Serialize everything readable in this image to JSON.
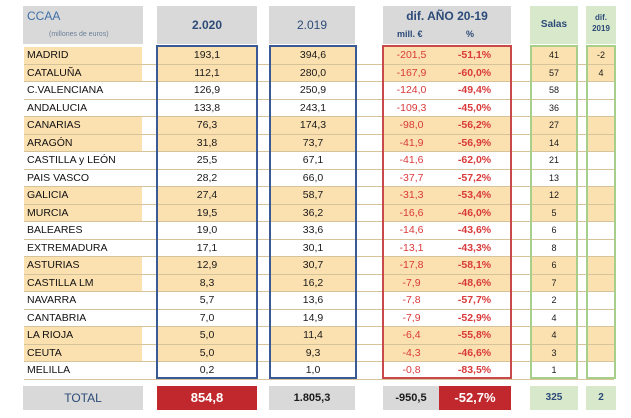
{
  "header": {
    "ccaa": "CCAA",
    "ccaa_sub": "(millones de euros)",
    "year_2020": "2.020",
    "year_2019": "2.019",
    "diff_title": "dif. AÑO 20-19",
    "diff_mill": "mill. €",
    "diff_pct": "%",
    "salas": "Salas",
    "salas_diff_top": "dif.",
    "salas_diff_bottom": "2019"
  },
  "rows": [
    {
      "name": "MADRID",
      "v2020": "193,1",
      "v2019": "394,6",
      "dm": "-201,5",
      "dp": "-51,1%",
      "salas": "41",
      "sdiff": "-2",
      "hl": true
    },
    {
      "name": "CATALUÑA",
      "v2020": "112,1",
      "v2019": "280,0",
      "dm": "-167,9",
      "dp": "-60,0%",
      "salas": "57",
      "sdiff": "4",
      "hl": true
    },
    {
      "name": "C.VALENCIANA",
      "v2020": "126,9",
      "v2019": "250,9",
      "dm": "-124,0",
      "dp": "-49,4%",
      "salas": "58",
      "sdiff": "",
      "hl": false
    },
    {
      "name": "ANDALUCIA",
      "v2020": "133,8",
      "v2019": "243,1",
      "dm": "-109,3",
      "dp": "-45,0%",
      "salas": "36",
      "sdiff": "",
      "hl": false
    },
    {
      "name": "CANARIAS",
      "v2020": "76,3",
      "v2019": "174,3",
      "dm": "-98,0",
      "dp": "-56,2%",
      "salas": "27",
      "sdiff": "",
      "hl": true
    },
    {
      "name": "ARAGÓN",
      "v2020": "31,8",
      "v2019": "73,7",
      "dm": "-41,9",
      "dp": "-56,9%",
      "salas": "14",
      "sdiff": "",
      "hl": true
    },
    {
      "name": "CASTILLA y LEÓN",
      "v2020": "25,5",
      "v2019": "67,1",
      "dm": "-41,6",
      "dp": "-62,0%",
      "salas": "21",
      "sdiff": "",
      "hl": false
    },
    {
      "name": "PAIS VASCO",
      "v2020": "28,2",
      "v2019": "66,0",
      "dm": "-37,7",
      "dp": "-57,2%",
      "salas": "13",
      "sdiff": "",
      "hl": false
    },
    {
      "name": "GALICIA",
      "v2020": "27,4",
      "v2019": "58,7",
      "dm": "-31,3",
      "dp": "-53,4%",
      "salas": "12",
      "sdiff": "",
      "hl": true
    },
    {
      "name": "MURCIA",
      "v2020": "19,5",
      "v2019": "36,2",
      "dm": "-16,6",
      "dp": "-46,0%",
      "salas": "5",
      "sdiff": "",
      "hl": true
    },
    {
      "name": "BALEARES",
      "v2020": "19,0",
      "v2019": "33,6",
      "dm": "-14,6",
      "dp": "-43,6%",
      "salas": "6",
      "sdiff": "",
      "hl": false
    },
    {
      "name": "EXTREMADURA",
      "v2020": "17,1",
      "v2019": "30,1",
      "dm": "-13,1",
      "dp": "-43,3%",
      "salas": "8",
      "sdiff": "",
      "hl": false
    },
    {
      "name": "ASTURIAS",
      "v2020": "12,9",
      "v2019": "30,7",
      "dm": "-17,8",
      "dp": "-58,1%",
      "salas": "6",
      "sdiff": "",
      "hl": true
    },
    {
      "name": "CASTILLA LM",
      "v2020": "8,3",
      "v2019": "16,2",
      "dm": "-7,9",
      "dp": "-48,6%",
      "salas": "7",
      "sdiff": "",
      "hl": true
    },
    {
      "name": "NAVARRA",
      "v2020": "5,7",
      "v2019": "13,6",
      "dm": "-7,8",
      "dp": "-57,7%",
      "salas": "2",
      "sdiff": "",
      "hl": false
    },
    {
      "name": "CANTABRIA",
      "v2020": "7,0",
      "v2019": "14,9",
      "dm": "-7,9",
      "dp": "-52,9%",
      "salas": "4",
      "sdiff": "",
      "hl": false
    },
    {
      "name": "LA RIOJA",
      "v2020": "5,0",
      "v2019": "11,4",
      "dm": "-6,4",
      "dp": "-55,8%",
      "salas": "4",
      "sdiff": "",
      "hl": true
    },
    {
      "name": "CEUTA",
      "v2020": "5,0",
      "v2019": "9,3",
      "dm": "-4,3",
      "dp": "-46,6%",
      "salas": "3",
      "sdiff": "",
      "hl": true
    },
    {
      "name": "MELILLA",
      "v2020": "0,2",
      "v2019": "1,0",
      "dm": "-0,8",
      "dp": "-83,5%",
      "salas": "1",
      "sdiff": "",
      "hl": false
    }
  ],
  "total": {
    "label": "TOTAL",
    "v2020": "854,8",
    "v2019": "1.805,3",
    "dm": "-950,5",
    "dp": "-52,7%",
    "salas": "325",
    "sdiff": "2"
  },
  "colors": {
    "highlight": "#fbe0b0",
    "total_red": "#c0282d",
    "negative": "#d93a3a",
    "box_blue": "#3a5a96",
    "green": "#d8e8cb"
  }
}
